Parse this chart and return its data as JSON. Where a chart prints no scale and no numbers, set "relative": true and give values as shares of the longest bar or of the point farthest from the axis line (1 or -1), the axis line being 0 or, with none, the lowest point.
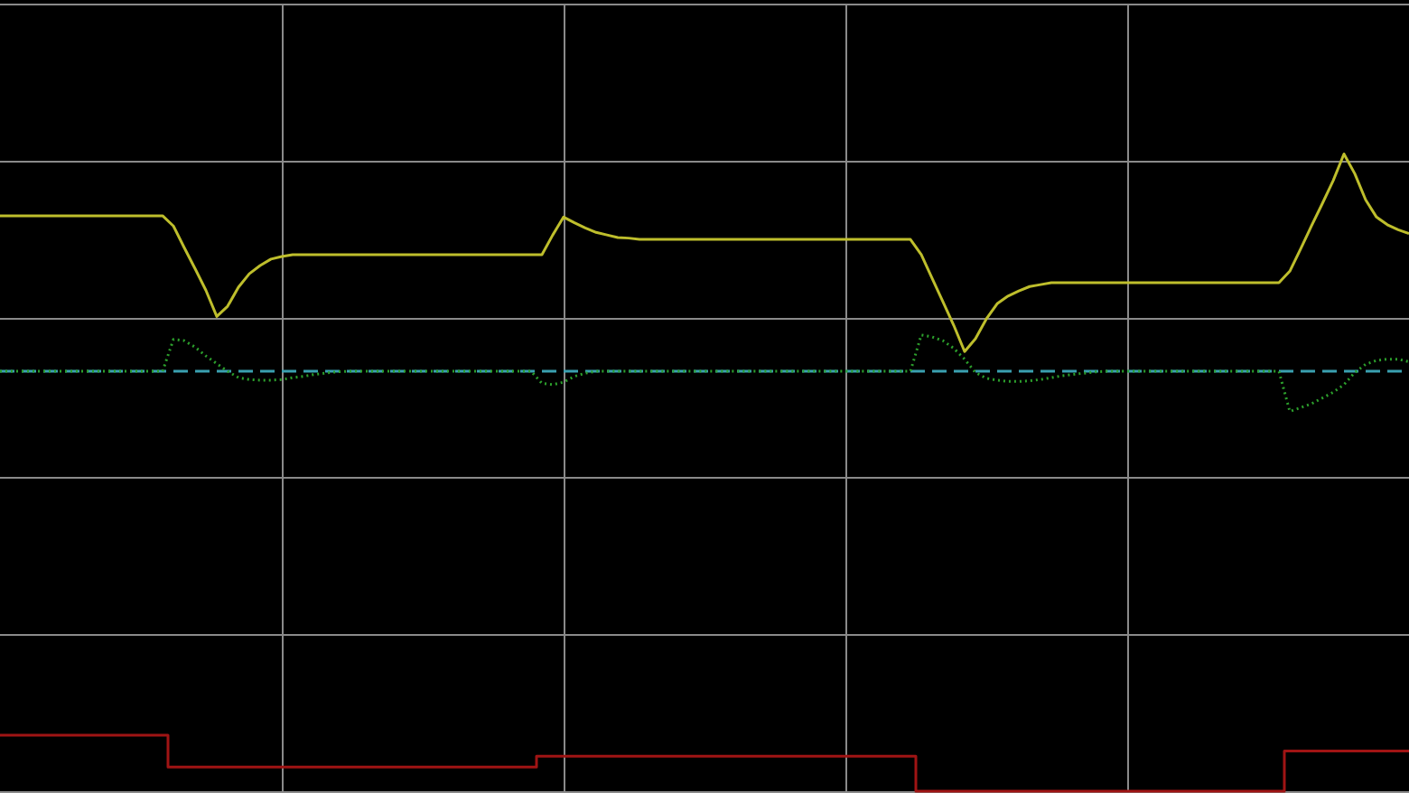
{
  "chart_data": {
    "type": "line",
    "relative": true,
    "grid": true,
    "marker": "none",
    "line_style": "solid",
    "categories": [
      null,
      null,
      null,
      null,
      null,
      null,
      null,
      null,
      null,
      null,
      null,
      null,
      null,
      null,
      null,
      null,
      null,
      null,
      null,
      null,
      null,
      null,
      null,
      null,
      null,
      null,
      null,
      null,
      null,
      null,
      null,
      null,
      null,
      null,
      null,
      null,
      null,
      null,
      null,
      null,
      null,
      null,
      null,
      null,
      null,
      null,
      null,
      null,
      null,
      null,
      null,
      null,
      null,
      null,
      null,
      null,
      null,
      null,
      null,
      null,
      null,
      null,
      null,
      null,
      null,
      null,
      null,
      null,
      null,
      null,
      null,
      null,
      null,
      null,
      null,
      null,
      null,
      null,
      null,
      null,
      null,
      null,
      null,
      null,
      null,
      null,
      null,
      null,
      null,
      null,
      null,
      null,
      null,
      null,
      null,
      null,
      null,
      null,
      null,
      null,
      null,
      null,
      null,
      null,
      null,
      null,
      null,
      null,
      null,
      null,
      null,
      null,
      null,
      null,
      null,
      null,
      null,
      null,
      null,
      null,
      null,
      null,
      null,
      null,
      null,
      null,
      null,
      null,
      null,
      null,
      null
    ],
    "series": [
      {
        "color": "#bebe2c",
        "values": [
          0.903,
          0.903,
          0.903,
          0.903,
          0.903,
          0.903,
          0.903,
          0.903,
          0.903,
          0.903,
          0.903,
          0.903,
          0.903,
          0.903,
          0.903,
          0.903,
          0.887,
          0.853,
          0.82,
          0.786,
          0.745,
          0.761,
          0.791,
          0.812,
          0.825,
          0.835,
          0.839,
          0.842,
          0.842,
          0.842,
          0.842,
          0.842,
          0.842,
          0.842,
          0.842,
          0.842,
          0.842,
          0.842,
          0.842,
          0.842,
          0.842,
          0.842,
          0.842,
          0.842,
          0.842,
          0.842,
          0.842,
          0.842,
          0.842,
          0.842,
          0.842,
          0.873,
          0.901,
          0.892,
          0.884,
          0.877,
          0.873,
          0.869,
          0.868,
          0.866,
          0.866,
          0.866,
          0.866,
          0.866,
          0.866,
          0.866,
          0.866,
          0.866,
          0.866,
          0.866,
          0.866,
          0.866,
          0.866,
          0.866,
          0.866,
          0.866,
          0.866,
          0.866,
          0.866,
          0.866,
          0.866,
          0.866,
          0.866,
          0.866,
          0.866,
          0.842,
          0.805,
          0.768,
          0.731,
          0.69,
          0.71,
          0.741,
          0.765,
          0.777,
          0.785,
          0.792,
          0.795,
          0.798,
          0.798,
          0.798,
          0.798,
          0.798,
          0.798,
          0.798,
          0.798,
          0.798,
          0.798,
          0.798,
          0.798,
          0.798,
          0.798,
          0.798,
          0.798,
          0.798,
          0.798,
          0.798,
          0.798,
          0.798,
          0.798,
          0.816,
          0.851,
          0.887,
          0.922,
          0.958,
          1,
          0.969,
          0.928,
          0.901,
          0.889,
          0.881,
          0.875
        ]
      },
      {
        "color": "#2ca02c",
        "line_style": "dotted",
        "values": [
          0.659,
          0.659,
          0.659,
          0.659,
          0.659,
          0.659,
          0.659,
          0.659,
          0.659,
          0.659,
          0.659,
          0.659,
          0.659,
          0.659,
          0.659,
          0.659,
          0.709,
          0.707,
          0.697,
          0.683,
          0.671,
          0.659,
          0.649,
          0.646,
          0.645,
          0.645,
          0.646,
          0.649,
          0.651,
          0.654,
          0.656,
          0.658,
          0.659,
          0.659,
          0.659,
          0.659,
          0.659,
          0.659,
          0.659,
          0.659,
          0.659,
          0.659,
          0.659,
          0.659,
          0.659,
          0.659,
          0.659,
          0.659,
          0.659,
          0.659,
          0.64,
          0.638,
          0.642,
          0.651,
          0.656,
          0.659,
          0.659,
          0.659,
          0.659,
          0.659,
          0.659,
          0.659,
          0.659,
          0.659,
          0.659,
          0.659,
          0.659,
          0.659,
          0.659,
          0.659,
          0.659,
          0.659,
          0.659,
          0.659,
          0.659,
          0.659,
          0.659,
          0.659,
          0.659,
          0.659,
          0.659,
          0.659,
          0.659,
          0.659,
          0.659,
          0.716,
          0.713,
          0.707,
          0.695,
          0.678,
          0.657,
          0.648,
          0.645,
          0.643,
          0.643,
          0.644,
          0.646,
          0.649,
          0.652,
          0.654,
          0.656,
          0.658,
          0.659,
          0.659,
          0.659,
          0.659,
          0.659,
          0.659,
          0.659,
          0.659,
          0.659,
          0.659,
          0.659,
          0.659,
          0.659,
          0.659,
          0.659,
          0.659,
          0.659,
          0.596,
          0.602,
          0.608,
          0.617,
          0.626,
          0.638,
          0.657,
          0.67,
          0.676,
          0.678,
          0.678,
          0.674
        ]
      },
      {
        "type": "step",
        "color": "#a01414",
        "values": [
          0.088,
          0.088,
          0.088,
          0.088,
          0.088,
          0.088,
          0.088,
          0.088,
          0.088,
          0.088,
          0.088,
          0.088,
          0.088,
          0.088,
          0.088,
          0.088,
          0.038,
          0.038,
          0.038,
          0.038,
          0.038,
          0.038,
          0.038,
          0.038,
          0.038,
          0.038,
          0.038,
          0.038,
          0.038,
          0.038,
          0.038,
          0.038,
          0.038,
          0.038,
          0.038,
          0.038,
          0.038,
          0.038,
          0.038,
          0.038,
          0.038,
          0.038,
          0.038,
          0.038,
          0.038,
          0.038,
          0.038,
          0.038,
          0.038,
          0.038,
          0.055,
          0.055,
          0.055,
          0.055,
          0.055,
          0.055,
          0.055,
          0.055,
          0.055,
          0.055,
          0.055,
          0.055,
          0.055,
          0.055,
          0.055,
          0.055,
          0.055,
          0.055,
          0.055,
          0.055,
          0.055,
          0.055,
          0.055,
          0.055,
          0.055,
          0.055,
          0.055,
          0.055,
          0.055,
          0.055,
          0.055,
          0.055,
          0.055,
          0.055,
          0.055,
          0,
          0,
          0,
          0,
          0,
          0,
          0,
          0,
          0,
          0,
          0,
          0,
          0,
          0,
          0,
          0,
          0,
          0,
          0,
          0,
          0,
          0,
          0,
          0,
          0,
          0,
          0,
          0,
          0,
          0,
          0,
          0,
          0,
          0,
          0.063,
          0.063,
          0.063,
          0.063,
          0.063,
          0.063,
          0.063,
          0.063,
          0.063,
          0.063,
          0.063,
          0.063
        ]
      }
    ],
    "ref_lines": [
      {
        "axis": "y",
        "value": 0.659,
        "color": "#3aa0b0",
        "line_style": "dashed"
      }
    ]
  }
}
